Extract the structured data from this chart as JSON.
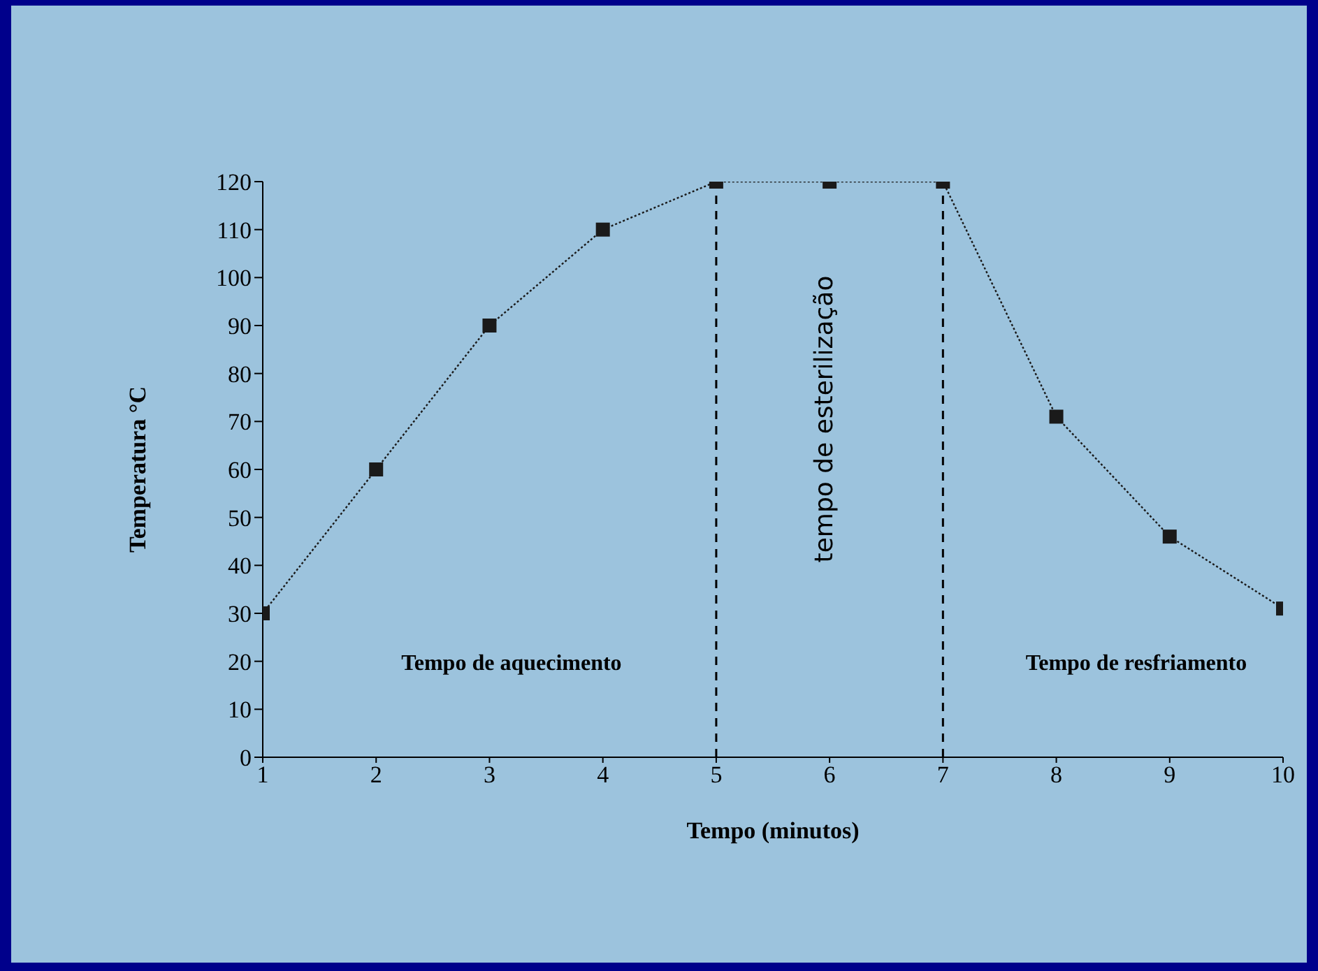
{
  "chart_data": {
    "type": "line",
    "xlabel": "Tempo (minutos)",
    "ylabel": "Temperatura °C",
    "x": [
      1,
      2,
      3,
      4,
      5,
      6,
      7,
      8,
      9,
      10
    ],
    "series": [
      {
        "color": "#1a1a1a",
        "values": [
          30,
          60,
          90,
          110,
          120,
          120,
          120,
          71,
          46,
          31
        ]
      }
    ],
    "xlim": [
      1,
      10
    ],
    "xticks": [
      1,
      2,
      3,
      4,
      5,
      6,
      7,
      8,
      9,
      10
    ],
    "ylim": [
      0,
      120
    ],
    "yticks": [
      0,
      10,
      20,
      30,
      40,
      50,
      60,
      70,
      80,
      90,
      100,
      110,
      120
    ],
    "grid": false,
    "legend": false,
    "marker": "square",
    "line_style": "dotted",
    "ref_lines": [
      {
        "axis": "x",
        "value": 5,
        "line_style": "dashed",
        "color": "#000000"
      },
      {
        "axis": "x",
        "value": 7,
        "line_style": "dashed",
        "color": "#000000"
      }
    ],
    "annotations": [
      "Tempo de aquecimento",
      "tempo de esterilização",
      "Tempo de resfriamento"
    ]
  }
}
